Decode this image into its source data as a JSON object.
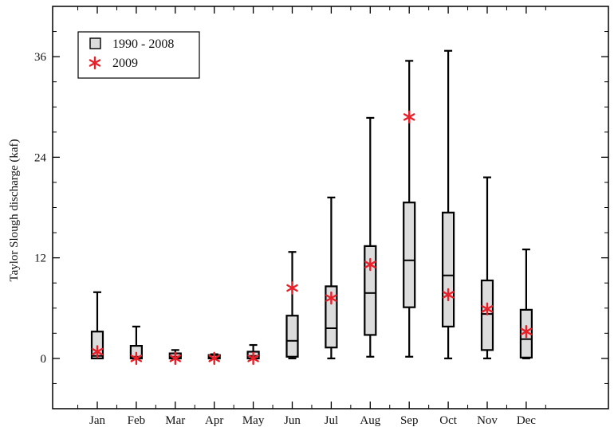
{
  "chart_data": {
    "type": "box",
    "xlabel": "",
    "ylabel": "Taylor Slough discharge (kaf)",
    "ylim": [
      -6,
      42
    ],
    "yticks": [
      0,
      12,
      24,
      36
    ],
    "grid": false,
    "legend_position": "top-left",
    "colors": {
      "box_fill": "#dcdcdc",
      "box_edge": "#000000",
      "marker": "#e8202a"
    },
    "categories": [
      "Jan",
      "Feb",
      "Mar",
      "Apr",
      "May",
      "Jun",
      "Jul",
      "Aug",
      "Sep",
      "Oct",
      "Nov",
      "Dec"
    ],
    "series": [
      {
        "name": "1990 - 2008",
        "kind": "box",
        "boxes": [
          {
            "min": 0.0,
            "q1": 0.0,
            "median": 0.3,
            "q3": 3.2,
            "max": 7.9
          },
          {
            "min": 0.0,
            "q1": 0.0,
            "median": 0.2,
            "q3": 1.5,
            "max": 3.8
          },
          {
            "min": 0.0,
            "q1": 0.0,
            "median": 0.2,
            "q3": 0.6,
            "max": 1.0
          },
          {
            "min": 0.0,
            "q1": 0.0,
            "median": 0.1,
            "q3": 0.4,
            "max": 0.5
          },
          {
            "min": 0.0,
            "q1": 0.0,
            "median": 0.3,
            "q3": 0.8,
            "max": 1.6
          },
          {
            "min": 0.0,
            "q1": 0.2,
            "median": 2.1,
            "q3": 5.1,
            "max": 12.7
          },
          {
            "min": 0.0,
            "q1": 1.3,
            "median": 3.6,
            "q3": 8.6,
            "max": 19.2
          },
          {
            "min": 0.2,
            "q1": 2.8,
            "median": 7.8,
            "q3": 13.4,
            "max": 28.7
          },
          {
            "min": 0.2,
            "q1": 6.1,
            "median": 11.7,
            "q3": 18.6,
            "max": 35.5
          },
          {
            "min": 0.0,
            "q1": 3.8,
            "median": 9.9,
            "q3": 17.4,
            "max": 36.7
          },
          {
            "min": 0.0,
            "q1": 1.0,
            "median": 5.3,
            "q3": 9.3,
            "max": 21.6
          },
          {
            "min": 0.0,
            "q1": 0.1,
            "median": 2.3,
            "q3": 5.8,
            "max": 13.0
          }
        ]
      },
      {
        "name": "2009",
        "kind": "point",
        "values": [
          0.8,
          0.0,
          0.0,
          0.0,
          0.0,
          8.4,
          7.2,
          11.2,
          28.8,
          7.6,
          5.9,
          3.2
        ]
      }
    ]
  }
}
